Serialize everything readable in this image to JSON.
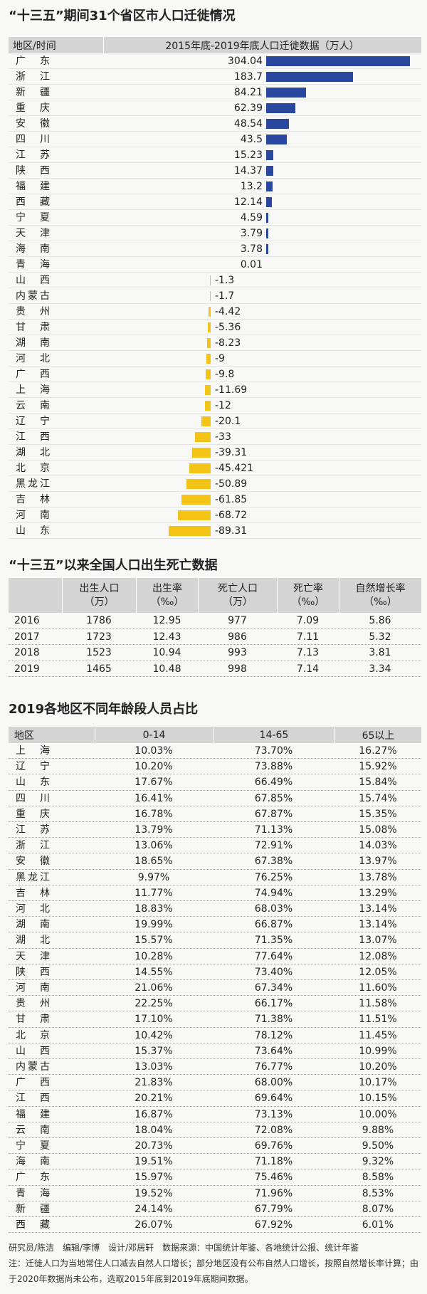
{
  "chart_data": {
    "type": "bar",
    "orientation": "horizontal",
    "title": "“十三五”期间31个省区市人口迁徙情况",
    "category_label": "地区/时间",
    "value_label": "2015年底-2019年底人口迁徙数据（万人）",
    "positive_color": "#2a47a0",
    "negative_color": "#f3c316",
    "categories": [
      "广东",
      "浙江",
      "新疆",
      "重庆",
      "安徽",
      "四川",
      "江苏",
      "陕西",
      "福建",
      "西藏",
      "宁夏",
      "天津",
      "海南",
      "青海",
      "山西",
      "内蒙古",
      "贵州",
      "甘肃",
      "湖南",
      "河北",
      "广西",
      "上海",
      "云南",
      "辽宁",
      "江西",
      "湖北",
      "北京",
      "黑龙江",
      "吉林",
      "河南",
      "山东"
    ],
    "values": [
      304.04,
      183.7,
      84.21,
      62.39,
      48.54,
      43.5,
      15.23,
      14.37,
      13.2,
      12.14,
      4.59,
      3.79,
      3.78,
      0.01,
      -1.3,
      -1.7,
      -4.42,
      -5.36,
      -8.23,
      -9,
      -9.8,
      -11.69,
      -12,
      -20.1,
      -33,
      -39.31,
      -45.421,
      -50.89,
      -61.85,
      -68.72,
      -89.31
    ]
  },
  "birth_death": {
    "title": "“十三五”以来全国人口出生死亡数据",
    "columns": [
      "出生人口\n（万）",
      "出生率\n（‰）",
      "死亡人口\n（万）",
      "死亡率\n（‰）",
      "自然增长率\n（‰）"
    ],
    "rows": [
      [
        2016,
        1786,
        12.95,
        977,
        7.09,
        5.86
      ],
      [
        2017,
        1723,
        12.43,
        986,
        7.11,
        5.32
      ],
      [
        2018,
        1523,
        10.94,
        993,
        7.13,
        3.81
      ],
      [
        2019,
        1465,
        10.48,
        998,
        7.14,
        3.34
      ]
    ]
  },
  "age_structure": {
    "title": "2019各地区不同年龄段人员占比",
    "columns": [
      "地区",
      "0-14",
      "14-65",
      "65以上"
    ],
    "rows": [
      [
        "上海",
        "10.03%",
        "73.70%",
        "16.27%"
      ],
      [
        "辽宁",
        "10.20%",
        "73.88%",
        "15.92%"
      ],
      [
        "山东",
        "17.67%",
        "66.49%",
        "15.84%"
      ],
      [
        "四川",
        "16.41%",
        "67.85%",
        "15.74%"
      ],
      [
        "重庆",
        "16.78%",
        "67.87%",
        "15.35%"
      ],
      [
        "江苏",
        "13.79%",
        "71.13%",
        "15.08%"
      ],
      [
        "浙江",
        "13.06%",
        "72.91%",
        "14.03%"
      ],
      [
        "安徽",
        "18.65%",
        "67.38%",
        "13.97%"
      ],
      [
        "黑龙江",
        "9.97%",
        "76.25%",
        "13.78%"
      ],
      [
        "吉林",
        "11.77%",
        "74.94%",
        "13.29%"
      ],
      [
        "河北",
        "18.83%",
        "68.03%",
        "13.14%"
      ],
      [
        "湖南",
        "19.99%",
        "66.87%",
        "13.14%"
      ],
      [
        "湖北",
        "15.57%",
        "71.35%",
        "13.07%"
      ],
      [
        "天津",
        "10.28%",
        "77.64%",
        "12.08%"
      ],
      [
        "陕西",
        "14.55%",
        "73.40%",
        "12.05%"
      ],
      [
        "河南",
        "21.06%",
        "67.34%",
        "11.60%"
      ],
      [
        "贵州",
        "22.25%",
        "66.17%",
        "11.58%"
      ],
      [
        "甘肃",
        "17.10%",
        "71.38%",
        "11.51%"
      ],
      [
        "北京",
        "10.42%",
        "78.12%",
        "11.45%"
      ],
      [
        "山西",
        "15.37%",
        "73.64%",
        "10.99%"
      ],
      [
        "内蒙古",
        "13.03%",
        "76.77%",
        "10.20%"
      ],
      [
        "广西",
        "21.83%",
        "68.00%",
        "10.17%"
      ],
      [
        "江西",
        "20.21%",
        "69.64%",
        "10.15%"
      ],
      [
        "福建",
        "16.87%",
        "73.13%",
        "10.00%"
      ],
      [
        "云南",
        "18.04%",
        "72.08%",
        "9.88%"
      ],
      [
        "宁夏",
        "20.73%",
        "69.76%",
        "9.50%"
      ],
      [
        "海南",
        "19.51%",
        "71.18%",
        "9.32%"
      ],
      [
        "广东",
        "15.97%",
        "75.46%",
        "8.58%"
      ],
      [
        "青海",
        "19.52%",
        "71.96%",
        "8.53%"
      ],
      [
        "新疆",
        "24.14%",
        "67.79%",
        "8.07%"
      ],
      [
        "西藏",
        "26.07%",
        "67.92%",
        "6.01%"
      ]
    ]
  },
  "footer": [
    "研究员/陈洁　编辑/李博　设计/邓居轩　数据来源：中国统计年鉴、各地统计公报、统计年鉴",
    "注：迁徙人口为当地常住人口减去自然人口增长；部分地区没有公布自然人口增长，按照自然增长率计算；由于2020年数据尚未公布，选取2015年底到2019年底期间数据。"
  ]
}
